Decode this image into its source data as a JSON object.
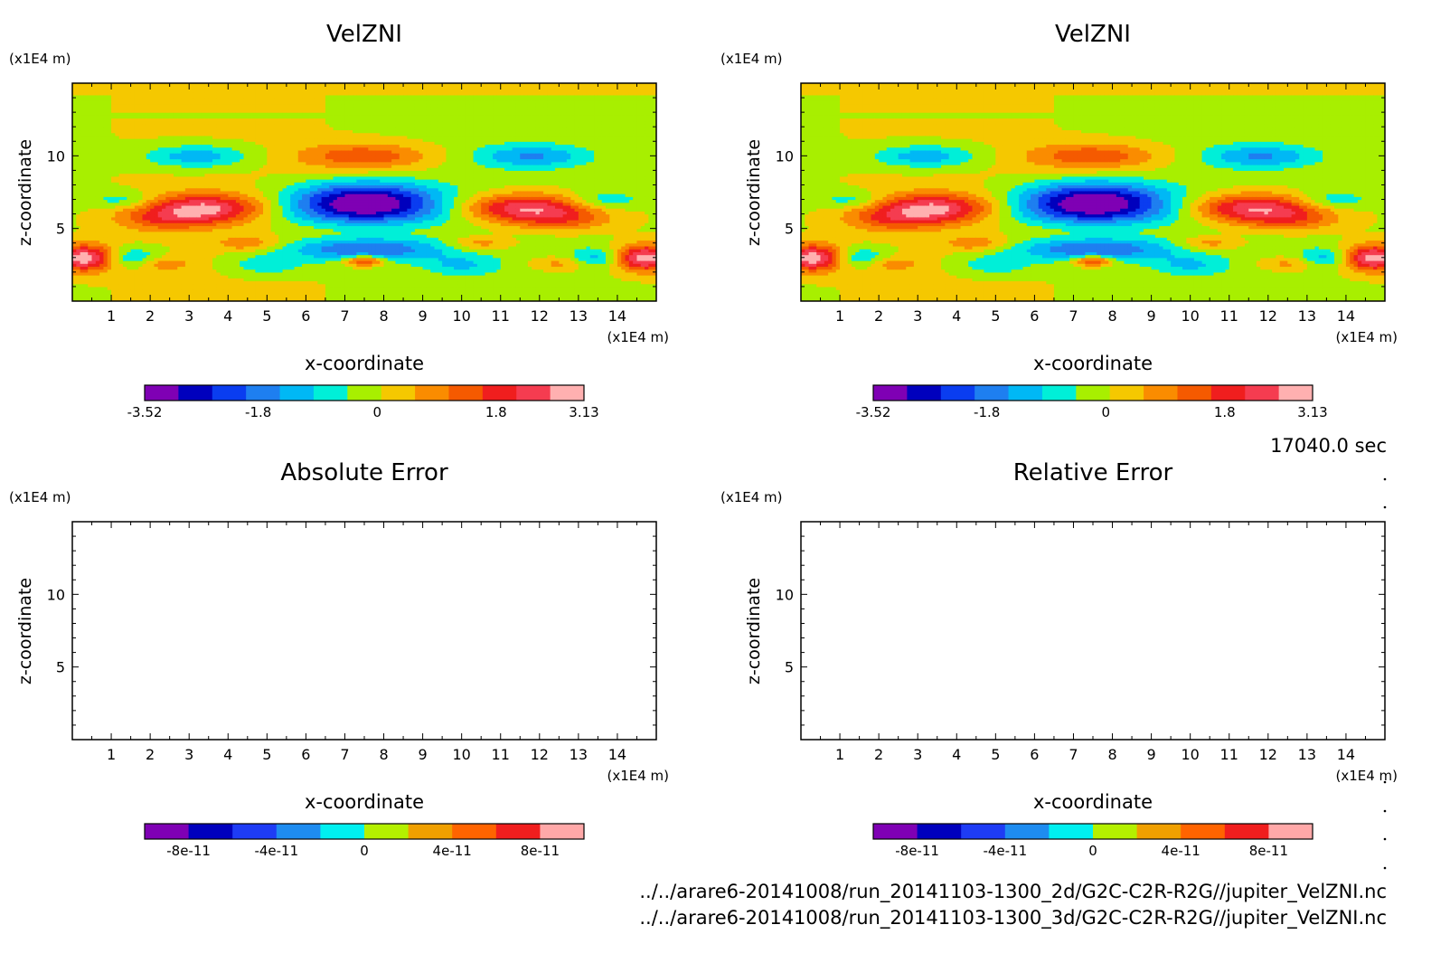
{
  "time_label": "17040.0 sec",
  "footer_lines": [
    "../../arare6-20141008/run_20141103-1300_2d/G2C-C2R-R2G//jupiter_VelZNI.nc",
    "../../arare6-20141008/run_20141103-1300_3d/G2C-C2R-R2G//jupiter_VelZNI.nc"
  ],
  "chart_data": [
    {
      "type": "heatmap",
      "title": "VelZNI",
      "xlabel": "x-coordinate",
      "ylabel": "z-coordinate",
      "x_unit": "(x1E4 m)",
      "y_unit": "(x1E4 m)",
      "xlim": [
        0,
        15
      ],
      "ylim": [
        0,
        15
      ],
      "x_ticks": [
        1,
        2,
        3,
        4,
        5,
        6,
        7,
        8,
        9,
        10,
        11,
        12,
        13,
        14
      ],
      "y_ticks": [
        5,
        10
      ],
      "field": "velzni",
      "colorbar": {
        "min": -3.52,
        "max": 3.13,
        "tick_values": [
          -3.52,
          -1.8,
          0,
          1.8,
          3.13
        ],
        "tick_labels": [
          "-3.52",
          "-1.8",
          "0",
          "1.8",
          "3.13"
        ]
      }
    },
    {
      "type": "heatmap",
      "title": "VelZNI",
      "xlabel": "x-coordinate",
      "ylabel": "z-coordinate",
      "x_unit": "(x1E4 m)",
      "y_unit": "(x1E4 m)",
      "xlim": [
        0,
        15
      ],
      "ylim": [
        0,
        15
      ],
      "x_ticks": [
        1,
        2,
        3,
        4,
        5,
        6,
        7,
        8,
        9,
        10,
        11,
        12,
        13,
        14
      ],
      "y_ticks": [
        5,
        10
      ],
      "field": "velzni",
      "colorbar": {
        "min": -3.52,
        "max": 3.13,
        "tick_values": [
          -3.52,
          -1.8,
          0,
          1.8,
          3.13
        ],
        "tick_labels": [
          "-3.52",
          "-1.8",
          "0",
          "1.8",
          "3.13"
        ]
      }
    },
    {
      "type": "heatmap",
      "title": "Absolute Error",
      "xlabel": "x-coordinate",
      "ylabel": "z-coordinate",
      "x_unit": "(x1E4 m)",
      "y_unit": "(x1E4 m)",
      "xlim": [
        0,
        15
      ],
      "ylim": [
        0,
        15
      ],
      "x_ticks": [
        1,
        2,
        3,
        4,
        5,
        6,
        7,
        8,
        9,
        10,
        11,
        12,
        13,
        14
      ],
      "y_ticks": [
        5,
        10
      ],
      "field": "empty",
      "colorbar": {
        "min": -1e-10,
        "max": 1e-10,
        "tick_values": [
          -8e-11,
          -4e-11,
          0,
          4e-11,
          8e-11
        ],
        "tick_labels": [
          "-8e-11",
          "-4e-11",
          "0",
          "4e-11",
          "8e-11"
        ]
      }
    },
    {
      "type": "heatmap",
      "title": "Relative Error",
      "xlabel": "x-coordinate",
      "ylabel": "z-coordinate",
      "x_unit": "(x1E4 m)",
      "y_unit": "(x1E4 m)",
      "xlim": [
        0,
        15
      ],
      "ylim": [
        0,
        15
      ],
      "x_ticks": [
        1,
        2,
        3,
        4,
        5,
        6,
        7,
        8,
        9,
        10,
        11,
        12,
        13,
        14
      ],
      "y_ticks": [
        5,
        10
      ],
      "field": "empty",
      "colorbar": {
        "min": -1e-10,
        "max": 1e-10,
        "tick_values": [
          -8e-11,
          -4e-11,
          0,
          4e-11,
          8e-11
        ],
        "tick_labels": [
          "-8e-11",
          "-4e-11",
          "0",
          "4e-11",
          "8e-11"
        ]
      }
    }
  ],
  "colors": {
    "velzni_levels": [
      "#7f00b4",
      "#0000bd",
      "#0a3df0",
      "#1e7ff0",
      "#00b8f5",
      "#00efd8",
      "#a8ef00",
      "#f5c800",
      "#fa8c00",
      "#f55a00",
      "#f01e1e",
      "#f53c50",
      "#ffb0b0"
    ],
    "error_levels": [
      "#7f00b4",
      "#0000bd",
      "#1e3cf5",
      "#1e8cf0",
      "#00f0f0",
      "#b4f000",
      "#f0a000",
      "#ff6400",
      "#f01e1e",
      "#ffa8a8"
    ],
    "frame": "#000000"
  }
}
